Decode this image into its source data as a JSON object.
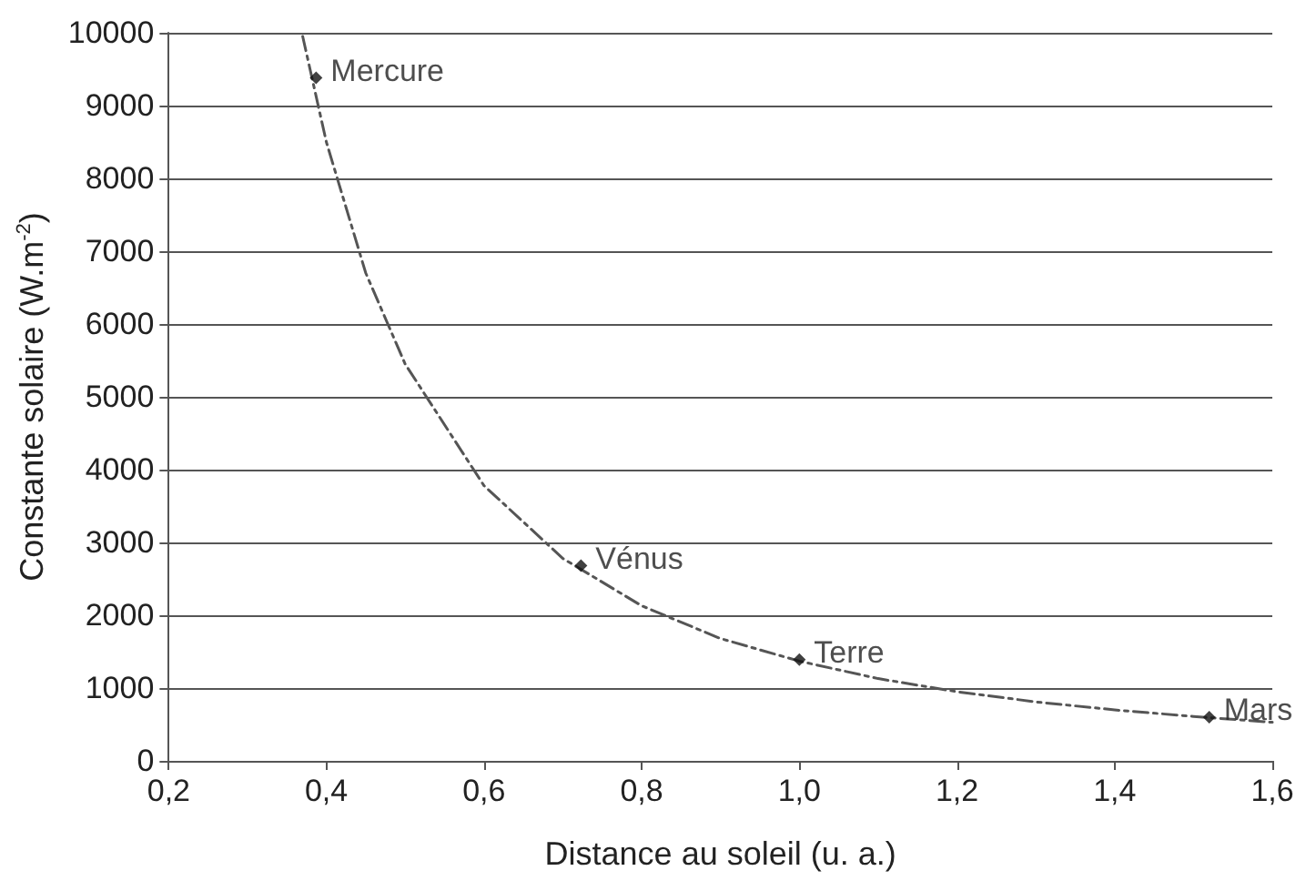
{
  "chart_data": {
    "type": "scatter",
    "xlabel": "Distance au soleil (u. a.)",
    "ylabel": "Constante solaire (W.m$^{-2}$)",
    "xlim": [
      0.2,
      1.6
    ],
    "ylim": [
      0,
      10000
    ],
    "xticks": [
      {
        "value": 0.2,
        "label": "0,2"
      },
      {
        "value": 0.4,
        "label": "0,4"
      },
      {
        "value": 0.6,
        "label": "0,6"
      },
      {
        "value": 0.8,
        "label": "0,8"
      },
      {
        "value": 1.0,
        "label": "1,0"
      },
      {
        "value": 1.2,
        "label": "1,2"
      },
      {
        "value": 1.4,
        "label": "1,4"
      },
      {
        "value": 1.6,
        "label": "1,6"
      }
    ],
    "yticks": [
      0,
      1000,
      2000,
      3000,
      4000,
      5000,
      6000,
      7000,
      8000,
      9000,
      10000
    ],
    "grid": "y",
    "series": [
      {
        "type": "line",
        "color": "#555555",
        "marker": "none",
        "line_style": "dashed",
        "x": [
          0.37,
          0.4,
          0.45,
          0.5,
          0.6,
          0.7,
          0.8,
          0.9,
          1.0,
          1.1,
          1.2,
          1.3,
          1.4,
          1.5,
          1.6
        ],
        "values": [
          9950,
          8500,
          6700,
          5450,
          3780,
          2780,
          2130,
          1680,
          1370,
          1130,
          950,
          810,
          700,
          610,
          530
        ]
      },
      {
        "color": "#111111",
        "marker": "diamond",
        "x": [
          0.387,
          0.723,
          1.0,
          1.52
        ],
        "values": [
          9380,
          2680,
          1390,
          600
        ]
      }
    ],
    "annotations": [
      {
        "text": "Mercure",
        "x": 0.387,
        "y": 9380
      },
      {
        "text": "Vénus",
        "x": 0.723,
        "y": 2680
      },
      {
        "text": "Terre",
        "x": 1.0,
        "y": 1390
      },
      {
        "text": "Mars",
        "x": 1.52,
        "y": 600
      }
    ]
  }
}
